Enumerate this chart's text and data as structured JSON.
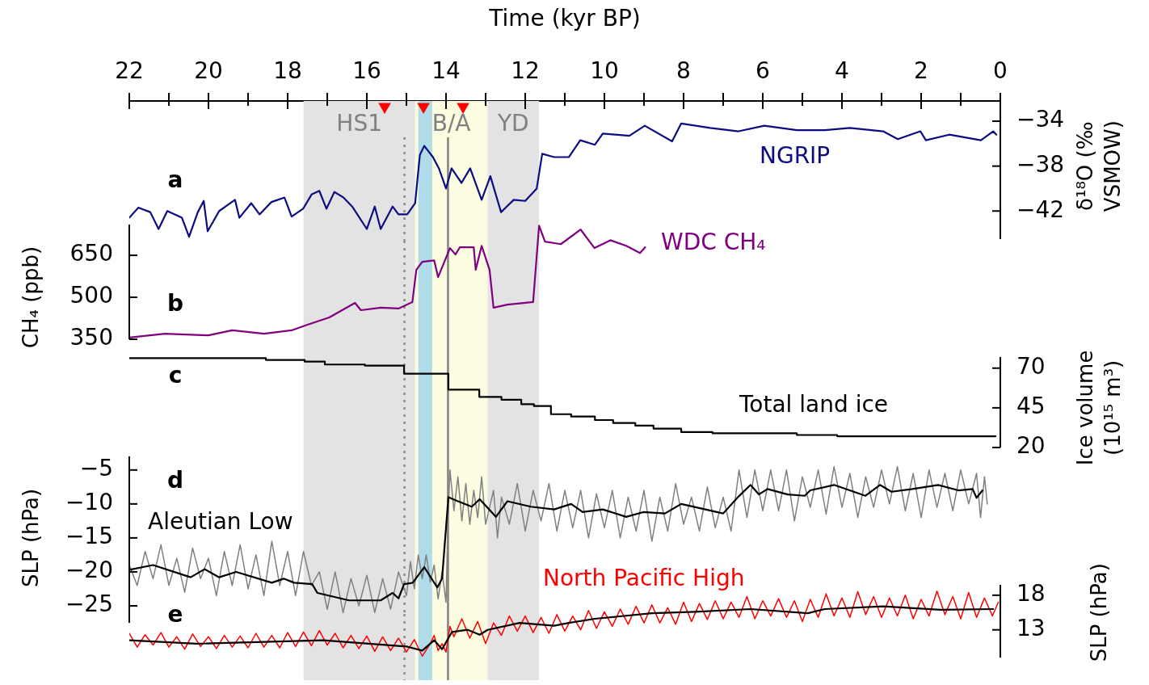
{
  "chart_data": [
    {
      "type": "line",
      "xlabel": "Time (kyr BP)",
      "ylabel": "δ¹⁸O (‰ VSMOW)",
      "xlim": [
        22,
        0
      ],
      "xticks": [
        22,
        {
          "value": 21,
          "label": null
        },
        20,
        {
          "value": 19,
          "label": null
        },
        18,
        {
          "value": 17,
          "label": null
        },
        16,
        {
          "value": 15,
          "label": null
        },
        14,
        {
          "value": 13,
          "label": null
        },
        12,
        {
          "value": 11,
          "label": null
        },
        10,
        {
          "value": 9,
          "label": null
        },
        8,
        {
          "value": 7,
          "label": null
        },
        6,
        {
          "value": 5,
          "label": null
        },
        4,
        {
          "value": 3,
          "label": null
        },
        2,
        {
          "value": 1,
          "label": null
        },
        0
      ],
      "ylim": [
        -44.5,
        -32.2
      ],
      "yticks": [
        {
          "value": -42,
          "label": "−42"
        },
        {
          "value": -38,
          "label": "−38"
        },
        {
          "value": -34,
          "label": "−34"
        }
      ],
      "annotations": [
        "a"
      ],
      "bands": [
        {
          "axis": "x",
          "from": 17.6,
          "to": 14.78,
          "label": "HS1",
          "color": "#e3e3e3"
        },
        {
          "axis": "x",
          "from": 14.78,
          "to": 12.95,
          "label": "B/A",
          "color": "#fcfce0"
        },
        {
          "axis": "x",
          "from": 14.7,
          "to": 14.35,
          "color": "#b0dcea"
        },
        {
          "axis": "x",
          "from": 12.95,
          "to": 11.65,
          "label": "YD",
          "color": "#e3e3e3"
        }
      ],
      "ref_lines": [
        {
          "axis": "x",
          "value": 15.05,
          "color": "#8c8c8c",
          "line_style": "dotted"
        },
        {
          "axis": "x",
          "value": 13.95,
          "color": "#808080",
          "line_style": "solid"
        }
      ],
      "series": [
        {
          "name": "NGRIP",
          "color": "#0c0c82",
          "x": [
            22,
            21.77,
            21.47,
            21.26,
            21.04,
            20.67,
            20.49,
            20.27,
            20.12,
            20.02,
            19.73,
            19.33,
            19.22,
            18.92,
            18.71,
            18.41,
            18.08,
            17.9,
            17.61,
            17.39,
            17.2,
            17.02,
            16.82,
            16.59,
            16.37,
            16,
            15.8,
            15.65,
            15.35,
            15.2,
            14.98,
            14.78,
            14.66,
            14.55,
            14.33,
            14.18,
            14,
            13.86,
            13.61,
            13.39,
            13.1,
            12.88,
            12.61,
            12.29,
            12,
            11.71,
            11.57,
            11.27,
            10.9,
            10.61,
            10.24,
            10.04,
            9.37,
            8.98,
            8.29,
            8.06,
            7.33,
            6.61,
            5.96,
            5.14,
            4.43,
            3.8,
            2.96,
            2.59,
            2.02,
            1.88,
            1.29,
            0.49,
            0.18,
            0.1
          ],
          "values": [
            -42.6,
            -41.7,
            -42.1,
            -43.6,
            -42,
            -42.6,
            -44.3,
            -42.1,
            -41.1,
            -43.8,
            -42,
            -41,
            -42.6,
            -41.3,
            -42.3,
            -41.2,
            -40.8,
            -42.5,
            -41.8,
            -40.5,
            -40.2,
            -41.8,
            -40.3,
            -40.8,
            -41.6,
            -43.6,
            -41.6,
            -43.6,
            -41.6,
            -42.3,
            -42.3,
            -41.3,
            -37,
            -36.2,
            -37.2,
            -38.2,
            -40,
            -38.2,
            -39.5,
            -38.2,
            -41,
            -38.9,
            -42.1,
            -41,
            -41.1,
            -40,
            -36.9,
            -37.2,
            -37.2,
            -35.7,
            -36.1,
            -35.1,
            -35.3,
            -34.4,
            -35.8,
            -34.2,
            -34.6,
            -34.9,
            -34.4,
            -34.8,
            -34.8,
            -34.6,
            -34.9,
            -35.6,
            -34.9,
            -35.7,
            -35.2,
            -35.7,
            -34.9,
            -35.2
          ]
        },
        {
          "type": "scatter",
          "marker": "triangle",
          "color": "#ff0000",
          "x": [
            15.55,
            14.57,
            13.57
          ],
          "values": [
            -32.7,
            -32.7,
            -32.7
          ]
        }
      ]
    },
    {
      "type": "line",
      "ylabel": "CH₄ (ppb)",
      "tick_labels": "y",
      "xlim": [
        22,
        0
      ],
      "ylim": [
        350,
        760
      ],
      "yticks": [
        350,
        500,
        650
      ],
      "annotations": [
        "b"
      ],
      "bands": [
        {
          "axis": "x",
          "from": 17.6,
          "to": 14.78,
          "color": "#e3e3e3"
        },
        {
          "axis": "x",
          "from": 14.78,
          "to": 12.95,
          "color": "#fcfce0"
        },
        {
          "axis": "x",
          "from": 14.7,
          "to": 14.35,
          "color": "#b0dcea"
        },
        {
          "axis": "x",
          "from": 12.95,
          "to": 11.65,
          "color": "#e3e3e3"
        }
      ],
      "ref_lines": [
        {
          "axis": "x",
          "value": 15.05,
          "color": "#8c8c8c",
          "line_style": "dotted"
        },
        {
          "axis": "x",
          "value": 13.95,
          "color": "#808080",
          "line_style": "solid"
        }
      ],
      "series": [
        {
          "name": "WDC CH₄",
          "color": "#800080",
          "x": [
            22,
            21.1,
            20,
            19.4,
            18.6,
            17.9,
            17.5,
            16.95,
            16.3,
            16.15,
            15.65,
            15.2,
            14.85,
            14.75,
            14.6,
            14.3,
            14.2,
            13.9,
            13.76,
            13.65,
            13.3,
            13.25,
            13.1,
            12.9,
            12.8,
            12.45,
            11.8,
            11.65,
            11.5,
            11.1,
            10.6,
            10.25,
            9.85,
            9.45,
            9.1,
            8.97
          ],
          "values": [
            356,
            370,
            364,
            382,
            370,
            382,
            402,
            428,
            480,
            454,
            463,
            460,
            483,
            598,
            627,
            632,
            572,
            676,
            653,
            679,
            679,
            598,
            684,
            598,
            463,
            474,
            483,
            756,
            699,
            690,
            742,
            676,
            704,
            684,
            658,
            679
          ]
        }
      ]
    },
    {
      "type": "step",
      "ylabel": "Ice volume (10¹⁵ m³)",
      "tick_labels": "y",
      "xlim": [
        22,
        0
      ],
      "ylim": [
        20,
        77
      ],
      "yticks": [
        20,
        45,
        70
      ],
      "annotations": [
        "c"
      ],
      "bands": [
        {
          "axis": "x",
          "from": 17.6,
          "to": 14.78,
          "color": "#e3e3e3"
        },
        {
          "axis": "x",
          "from": 14.78,
          "to": 12.95,
          "color": "#fcfce0"
        },
        {
          "axis": "x",
          "from": 14.7,
          "to": 14.35,
          "color": "#b0dcea"
        },
        {
          "axis": "x",
          "from": 12.95,
          "to": 11.65,
          "color": "#e3e3e3"
        }
      ],
      "ref_lines": [
        {
          "axis": "x",
          "value": 15.05,
          "color": "#8c8c8c",
          "line_style": "dotted"
        },
        {
          "axis": "x",
          "value": 13.95,
          "color": "#808080",
          "line_style": "solid"
        }
      ],
      "series": [
        {
          "name": "Total land ice",
          "color": "#000000",
          "x": [
            22,
            18.55,
            17.57,
            17.06,
            16.05,
            15.06,
            13.94,
            13.16,
            12.6,
            12.1,
            11.78,
            11.35,
            10.84,
            10.24,
            9.78,
            9.22,
            8.76,
            8.06,
            7.27,
            5.14,
            4.12,
            0.12
          ],
          "values": [
            76.3,
            75.2,
            74.1,
            72.3,
            71.6,
            66.5,
            56.5,
            51.9,
            50.1,
            47.3,
            46.1,
            41,
            39.5,
            37.3,
            35.5,
            33.8,
            31.9,
            29.7,
            29,
            27.9,
            27.1,
            27.1
          ]
        }
      ]
    },
    {
      "type": "line",
      "ylabel": "SLP (hPa)",
      "tick_labels": "y",
      "xlim": [
        22,
        0
      ],
      "ylim": [
        -27.5,
        -3
      ],
      "yticks": [
        {
          "value": -25,
          "label": "−25"
        },
        {
          "value": -20,
          "label": "−20"
        },
        {
          "value": -15,
          "label": "−15"
        },
        {
          "value": -10,
          "label": "−10"
        },
        {
          "value": -5,
          "label": "−5"
        }
      ],
      "annotations": [
        "d"
      ],
      "bands": [
        {
          "axis": "x",
          "from": 17.6,
          "to": 14.78,
          "color": "#e3e3e3"
        },
        {
          "axis": "x",
          "from": 14.78,
          "to": 12.95,
          "color": "#fcfce0"
        },
        {
          "axis": "x",
          "from": 14.7,
          "to": 14.35,
          "color": "#b0dcea"
        },
        {
          "axis": "x",
          "from": 12.95,
          "to": 11.65,
          "color": "#e3e3e3"
        }
      ],
      "ref_lines": [
        {
          "axis": "x",
          "value": 15.05,
          "color": "#8c8c8c",
          "line_style": "dotted"
        },
        {
          "axis": "x",
          "value": 13.95,
          "color": "#808080",
          "line_style": "solid"
        }
      ],
      "series": [
        {
          "name": "Aleutian Low",
          "color": "#808080",
          "x": [
            22,
            21.8,
            21.6,
            21.4,
            21.2,
            21,
            20.8,
            20.6,
            20.4,
            20.2,
            20,
            19.8,
            19.6,
            19.4,
            19.2,
            19,
            18.8,
            18.6,
            18.4,
            18.2,
            18,
            17.8,
            17.6,
            17.4,
            17.2,
            17,
            16.8,
            16.6,
            16.4,
            16.2,
            16,
            15.8,
            15.6,
            15.4,
            15.2,
            15,
            14.9,
            14.8,
            14.7,
            14.6,
            14.5,
            14.4,
            14.3,
            14.2,
            14.1,
            14,
            13.95,
            13.9,
            13.8,
            13.7,
            13.6,
            13.5,
            13.4,
            13.3,
            13.2,
            13.1,
            13,
            12.8,
            12.7,
            12.6,
            12.4,
            12.2,
            12,
            11.8,
            11.6,
            11.4,
            11.2,
            11,
            10.8,
            10.6,
            10.4,
            10.2,
            10,
            9.8,
            9.6,
            9.4,
            9.2,
            9,
            8.8,
            8.6,
            8.4,
            8.2,
            8,
            7.8,
            7.6,
            7.4,
            7.2,
            7,
            6.8,
            6.6,
            6.4,
            6.2,
            6,
            5.8,
            5.6,
            5.4,
            5.2,
            5,
            4.8,
            4.6,
            4.4,
            4.2,
            4,
            3.8,
            3.6,
            3.4,
            3.2,
            3,
            2.8,
            2.6,
            2.4,
            2.2,
            2,
            1.8,
            1.6,
            1.4,
            1.2,
            1,
            0.8,
            0.6,
            0.5,
            0.4,
            0.33
          ],
          "values": [
            -19,
            -22,
            -17,
            -21,
            -16,
            -22,
            -18,
            -23,
            -16.5,
            -21,
            -18,
            -23.5,
            -17,
            -22,
            -16,
            -22.5,
            -17.5,
            -23.5,
            -15.5,
            -22,
            -17,
            -23.5,
            -17,
            -22,
            -20,
            -25.5,
            -20,
            -26,
            -21,
            -25,
            -20.5,
            -26,
            -21,
            -25.5,
            -20,
            -23.5,
            -18.5,
            -22.5,
            -17.5,
            -21,
            -17.5,
            -21.5,
            -19,
            -24,
            -20,
            -24.5,
            -12,
            -5,
            -11,
            -6,
            -12.5,
            -7,
            -13,
            -8,
            -12,
            -6,
            -13,
            -8,
            -15,
            -9,
            -13,
            -7,
            -14,
            -8,
            -12.5,
            -7,
            -14,
            -8,
            -13.5,
            -8,
            -15,
            -8.5,
            -13.5,
            -8,
            -15,
            -9,
            -14,
            -8,
            -15.5,
            -9,
            -14,
            -7,
            -13,
            -9,
            -14,
            -7.5,
            -13.5,
            -9,
            -14,
            -5,
            -12,
            -5,
            -11,
            -5,
            -11,
            -5,
            -12.5,
            -6,
            -10.5,
            -5,
            -11.5,
            -4.5,
            -10.5,
            -5.5,
            -12,
            -6,
            -10.5,
            -5,
            -10,
            -4.5,
            -11,
            -5.5,
            -12,
            -5,
            -10.5,
            -5.5,
            -11,
            -5,
            -10,
            -5.5,
            -12,
            -6,
            -10
          ]
        },
        {
          "color": "#000000",
          "x": [
            22,
            21.4,
            20.45,
            20.1,
            19.73,
            19.3,
            18.4,
            18.1,
            17.84,
            17.38,
            17.25,
            16.45,
            15.65,
            15.35,
            15.2,
            15.06,
            14.84,
            14.55,
            14.22,
            14.1,
            13.94,
            13.7,
            13.35,
            13.15,
            12.74,
            12.45,
            11.86,
            11.27,
            10.84,
            10.55,
            10.04,
            9.45,
            9.02,
            8.47,
            8.06,
            7,
            6.61,
            6.31,
            6.1,
            5.88,
            5.37,
            4.94,
            4.8,
            4.2,
            3.41,
            3.04,
            2.75,
            2.22,
            1.57,
            1.06,
            0.7,
            0.6,
            0.45
          ],
          "values": [
            -19.7,
            -19,
            -20.8,
            -19.6,
            -20.8,
            -20,
            -21.6,
            -21,
            -21.6,
            -21.8,
            -23.1,
            -24.2,
            -24.2,
            -23.1,
            -23.9,
            -21.8,
            -21.6,
            -19.3,
            -22.3,
            -21,
            -9,
            -9.6,
            -10.4,
            -9.3,
            -11.9,
            -9.6,
            -10.4,
            -10.8,
            -10,
            -11.2,
            -10.8,
            -11.9,
            -11.2,
            -11.4,
            -10,
            -11.4,
            -8.9,
            -7.2,
            -8.6,
            -7.8,
            -8.6,
            -8.8,
            -8,
            -7.2,
            -8.8,
            -7.2,
            -8.2,
            -7.8,
            -7.2,
            -8,
            -7.8,
            -9.1,
            -8
          ]
        }
      ]
    },
    {
      "type": "line",
      "ylabel": "SLP (hPa)",
      "tick_labels": "y",
      "xlim": [
        22,
        0
      ],
      "ylim": [
        9,
        19.5
      ],
      "yticks": [
        13,
        18
      ],
      "annotations": [
        "e"
      ],
      "bands": [
        {
          "axis": "x",
          "from": 17.6,
          "to": 14.78,
          "color": "#e3e3e3"
        },
        {
          "axis": "x",
          "from": 14.78,
          "to": 12.95,
          "color": "#fcfce0"
        },
        {
          "axis": "x",
          "from": 14.7,
          "to": 14.35,
          "color": "#b0dcea"
        },
        {
          "axis": "x",
          "from": 12.95,
          "to": 11.65,
          "color": "#e3e3e3"
        }
      ],
      "ref_lines": [
        {
          "axis": "x",
          "value": 15.05,
          "color": "#8c8c8c",
          "line_style": "dotted"
        },
        {
          "axis": "x",
          "value": 13.95,
          "color": "#808080",
          "line_style": "solid"
        }
      ],
      "series": [
        {
          "name": "North Pacific High",
          "color": "#ff0000",
          "x": [
            22,
            21.8,
            21.6,
            21.4,
            21.2,
            21,
            20.8,
            20.6,
            20.4,
            20.2,
            20,
            19.8,
            19.6,
            19.4,
            19.2,
            19,
            18.8,
            18.6,
            18.4,
            18.2,
            18,
            17.8,
            17.6,
            17.4,
            17.2,
            17,
            16.8,
            16.6,
            16.4,
            16.2,
            16,
            15.8,
            15.6,
            15.4,
            15.2,
            15,
            14.8,
            14.6,
            14.4,
            14.3,
            14.2,
            14.1,
            14,
            13.9,
            13.8,
            13.6,
            13.4,
            13.2,
            13,
            12.8,
            12.6,
            12.4,
            12.2,
            12,
            11.8,
            11.6,
            11.4,
            11.2,
            11,
            10.8,
            10.6,
            10.4,
            10.2,
            10,
            9.8,
            9.6,
            9.4,
            9.2,
            9,
            8.8,
            8.6,
            8.4,
            8.2,
            8,
            7.8,
            7.6,
            7.4,
            7.2,
            7,
            6.8,
            6.6,
            6.4,
            6.2,
            6,
            5.8,
            5.6,
            5.4,
            5.2,
            5,
            4.8,
            4.6,
            4.4,
            4.2,
            4,
            3.8,
            3.6,
            3.4,
            3.2,
            3,
            2.8,
            2.6,
            2.4,
            2.2,
            2,
            1.8,
            1.6,
            1.4,
            1.2,
            1,
            0.8,
            0.6,
            0.4,
            0.2,
            0.05
          ],
          "values": [
            12.5,
            10.5,
            12.3,
            10.8,
            12.6,
            10.5,
            12,
            10.2,
            12.4,
            10.6,
            12,
            10.3,
            12.2,
            10.5,
            12.1,
            10.4,
            12.5,
            10.5,
            12.2,
            10.4,
            12.6,
            10.6,
            12.7,
            10.7,
            12.9,
            10.8,
            12.5,
            10.4,
            12.2,
            10.3,
            12.1,
            9.9,
            12,
            10,
            11.8,
            9.8,
            11.6,
            9.2,
            11,
            12.2,
            10,
            11,
            9.8,
            13.5,
            12,
            14.6,
            11.8,
            14.2,
            11,
            14,
            12.2,
            15,
            12.8,
            15,
            12.6,
            14.8,
            12.5,
            15.2,
            12.8,
            15,
            13,
            15.8,
            13.2,
            15.6,
            13.5,
            16,
            13.8,
            16.4,
            14,
            16.6,
            14,
            16.2,
            13.8,
            17,
            14.2,
            16.8,
            14.5,
            17.2,
            14.6,
            17,
            14.8,
            17.8,
            14.6,
            17.2,
            15,
            17.5,
            14.8,
            17.2,
            14.2,
            17.4,
            14.8,
            18.2,
            15,
            17.6,
            14.8,
            18.5,
            15.2,
            17.8,
            14.8,
            17.6,
            15,
            18,
            14.6,
            17.4,
            15,
            18.6,
            15.2,
            17.8,
            14.6,
            18.4,
            14.8,
            17.6,
            15,
            17
          ]
        },
        {
          "color": "#000000",
          "x": [
            22,
            20.3,
            17.1,
            15,
            14.6,
            14.3,
            14.1,
            13.85,
            13.45,
            13.15,
            12.95,
            12.14,
            11.27,
            10.9,
            10.24,
            8.8,
            7.7,
            6.31,
            4.86,
            4.43,
            2.96,
            1.51,
            0.18
          ],
          "values": [
            11.5,
            11,
            11.5,
            10.6,
            10,
            11.5,
            10.2,
            12.7,
            13,
            12.3,
            13,
            14,
            13.6,
            14,
            14.6,
            15.4,
            15.6,
            16,
            15.4,
            16,
            16.4,
            15.9,
            16
          ]
        }
      ]
    }
  ]
}
